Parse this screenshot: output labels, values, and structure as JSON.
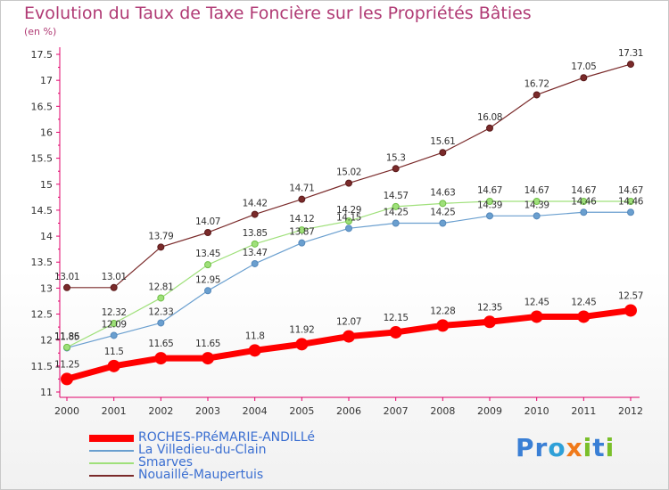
{
  "title": "Evolution du Taux de Taxe Foncière sur les Propriétés Bâties",
  "unit_label": "(en %)",
  "logo": {
    "text": "Proxiti",
    "letters": [
      "P",
      "r",
      "o",
      "x",
      "i",
      "t",
      "i"
    ],
    "colors": [
      "#3a7fd5",
      "#3a7fd5",
      "#2fa0d8",
      "#f07a1a",
      "#7abf2a",
      "#3a7fd5",
      "#7abf2a"
    ]
  },
  "chart_data": {
    "type": "line",
    "title": "Evolution du Taux de Taxe Foncière sur les Propriétés Bâties",
    "ylabel": "(en %)",
    "xlabel": "",
    "ylim": [
      11,
      17.5
    ],
    "yticks": [
      "11",
      "11.5",
      "12",
      "12.5",
      "13",
      "13.5",
      "14",
      "14.5",
      "15",
      "15.5",
      "16",
      "16.5",
      "17",
      "17.5"
    ],
    "categories": [
      "2000",
      "2001",
      "2002",
      "2003",
      "2004",
      "2005",
      "2006",
      "2007",
      "2008",
      "2009",
      "2010",
      "2011",
      "2012"
    ],
    "grid": false,
    "legend_position": "bottom-left",
    "series": [
      {
        "name": "ROCHES-PRéMARIE-ANDILLé",
        "color": "#ff0000",
        "values": [
          11.25,
          11.5,
          11.65,
          11.65,
          11.8,
          11.92,
          12.07,
          12.15,
          12.28,
          12.35,
          12.45,
          12.45,
          12.57
        ],
        "labels": [
          "11.25",
          "11.5",
          "11.65",
          "11.65",
          "11.8",
          "11.92",
          "12.07",
          "12.15",
          "12.28",
          "12.35",
          "12.45",
          "12.45",
          "12.57"
        ]
      },
      {
        "name": "La Villedieu-du-Clain",
        "color": "#6a9fcf",
        "values": [
          11.85,
          12.09,
          12.33,
          12.95,
          13.47,
          13.87,
          14.15,
          14.25,
          14.25,
          14.39,
          14.39,
          14.46,
          14.46
        ],
        "labels": [
          "11.85",
          "12.09",
          "12.33",
          "12.95",
          "13.47",
          "13.87",
          "14.15",
          "14.25",
          "14.25",
          "14.39",
          "14.39",
          "14.46",
          "14.46"
        ]
      },
      {
        "name": "Smarves",
        "color": "#9fe07a",
        "values": [
          11.86,
          12.32,
          12.81,
          13.45,
          13.85,
          14.12,
          14.29,
          14.57,
          14.63,
          14.67,
          14.67,
          14.67,
          14.67
        ],
        "labels": [
          "11.86",
          "12.32",
          "12.81",
          "13.45",
          "13.85",
          "14.12",
          "14.29",
          "14.57",
          "14.63",
          "14.67",
          "14.67",
          "14.67",
          "14.67"
        ]
      },
      {
        "name": "Nouaillé-Maupertuis",
        "color": "#7a2a2a",
        "values": [
          13.01,
          13.01,
          13.79,
          14.07,
          14.42,
          14.71,
          15.02,
          15.3,
          15.61,
          16.08,
          16.72,
          17.05,
          17.31
        ],
        "labels": [
          "13.01",
          "13.01",
          "13.79",
          "14.07",
          "14.42",
          "14.71",
          "15.02",
          "15.3",
          "15.61",
          "16.08",
          "16.72",
          "17.05",
          "17.31"
        ]
      }
    ]
  }
}
